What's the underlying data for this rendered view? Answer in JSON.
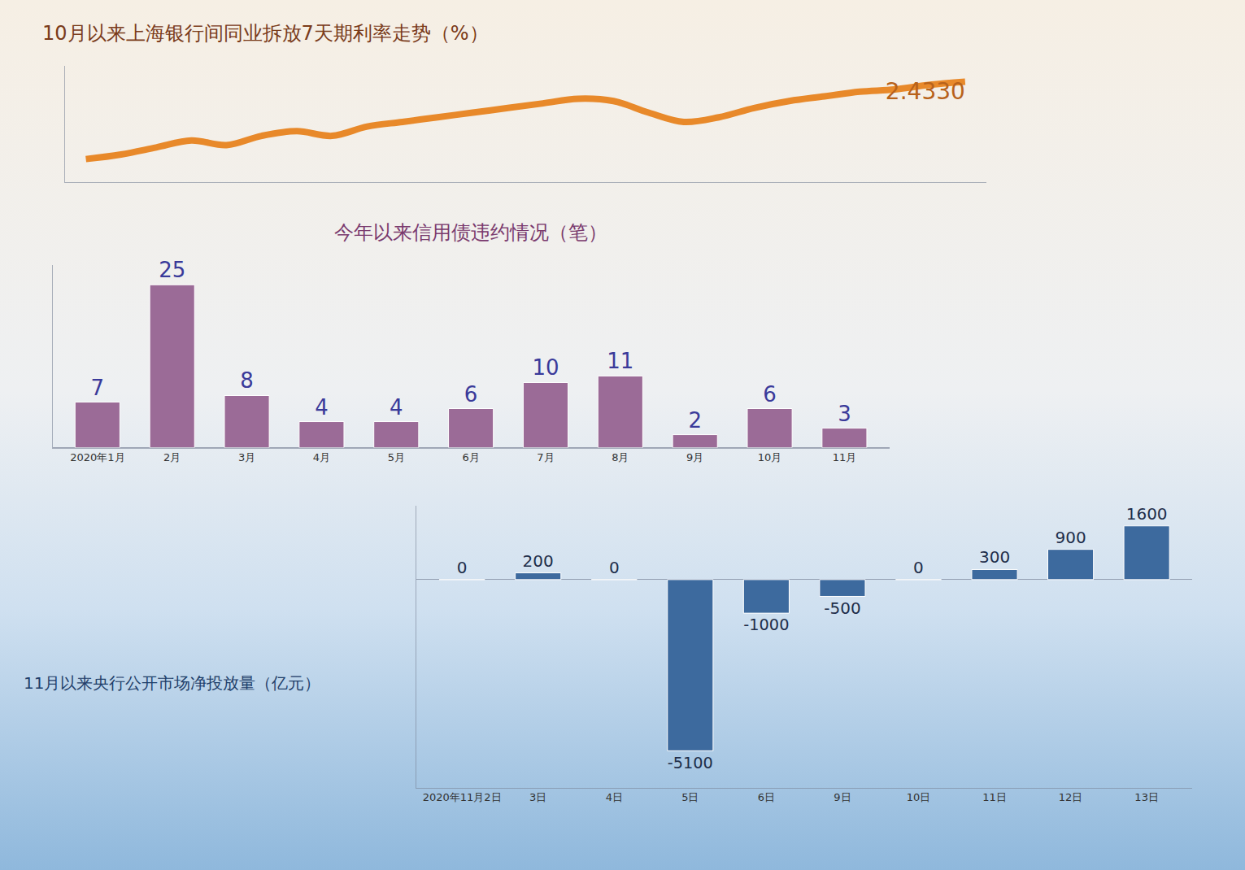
{
  "chart_data": [
    {
      "type": "line",
      "title": "10月以来上海银行间同业拆放7天期利率走势（%）",
      "categories": [
        null,
        null,
        null,
        null,
        null,
        null,
        null,
        null,
        null,
        null,
        null,
        null,
        null,
        null,
        null,
        null,
        null,
        null,
        null,
        null,
        null,
        null,
        null,
        null,
        null,
        null
      ],
      "values": [
        2.1,
        2.12,
        2.15,
        2.18,
        2.16,
        2.2,
        2.22,
        2.2,
        2.24,
        2.26,
        2.28,
        2.3,
        2.32,
        2.34,
        2.36,
        2.35,
        2.3,
        2.26,
        2.28,
        2.32,
        2.35,
        2.37,
        2.39,
        2.4,
        2.42,
        2.433
      ],
      "value_labels": [
        null,
        null,
        null,
        null,
        null,
        null,
        null,
        null,
        null,
        null,
        null,
        null,
        null,
        null,
        null,
        null,
        null,
        null,
        null,
        null,
        null,
        null,
        null,
        null,
        null,
        "2.4330"
      ],
      "color": "#e8892a",
      "ylim": [
        2.0,
        2.5
      ],
      "grid": false,
      "tick_labels": false
    },
    {
      "type": "bar",
      "title": "今年以来信用债违约情况（笔）",
      "categories": [
        "2020年1月",
        "2月",
        "3月",
        "4月",
        "5月",
        "6月",
        "7月",
        "8月",
        "9月",
        "10月",
        "11月"
      ],
      "values": [
        7,
        25,
        8,
        4,
        4,
        6,
        10,
        11,
        2,
        6,
        3
      ],
      "color": "#9b6b97",
      "ylim": [
        0,
        28
      ],
      "grid": false,
      "data_labels": true,
      "tick_labels": "x"
    },
    {
      "type": "bar",
      "title": "11月以来央行公开市场净投放量（亿元）",
      "categories": [
        "2020年11月2日",
        "3日",
        "4日",
        "5日",
        "6日",
        "9日",
        "10日",
        "11日",
        "12日",
        "13日"
      ],
      "values": [
        0,
        200,
        0,
        -5100,
        -1000,
        -500,
        0,
        300,
        900,
        1600
      ],
      "color": "#3d6a9e",
      "ylim": [
        -6200,
        2200
      ],
      "grid": false,
      "data_labels": true,
      "tick_labels": "x"
    }
  ]
}
